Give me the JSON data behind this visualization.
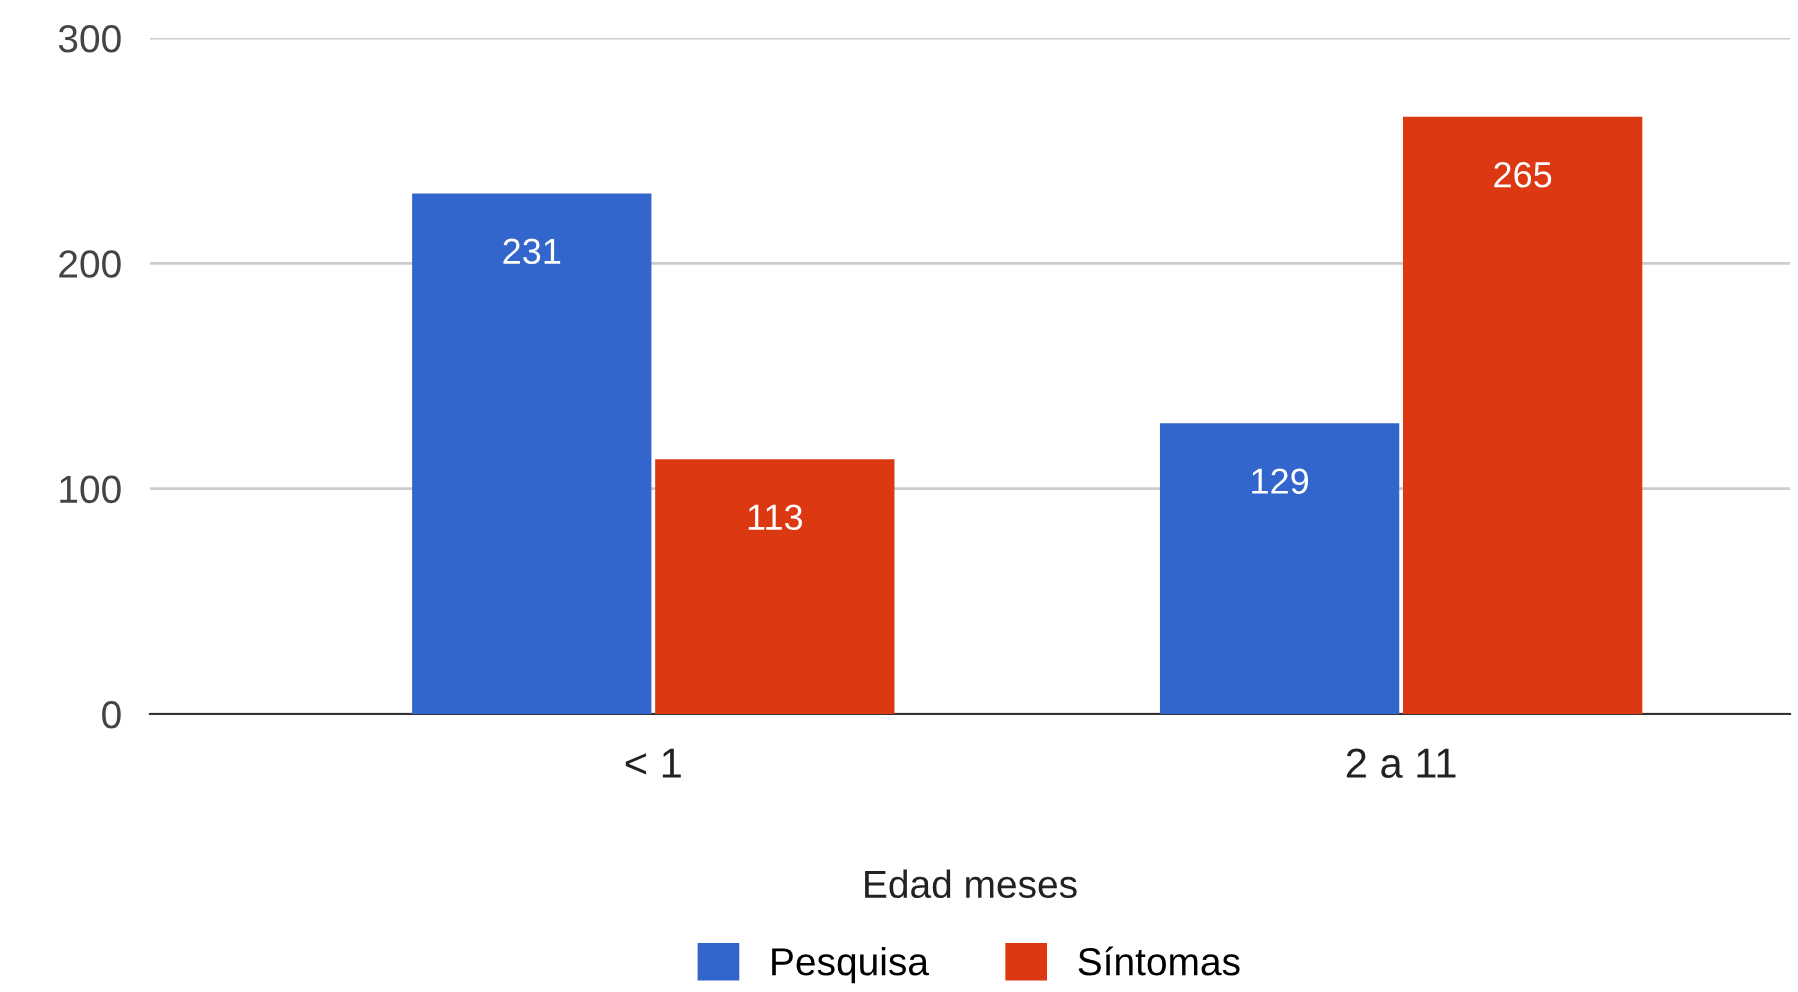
{
  "chart_data": {
    "type": "bar",
    "xlabel": "Edad meses",
    "categories": [
      "< 1",
      "2 a 11"
    ],
    "series": [
      {
        "name": "Pesquisa",
        "color": "#3366cc",
        "values": [
          231,
          129
        ]
      },
      {
        "name": "Síntomas",
        "color": "#dc3912",
        "values": [
          113,
          265
        ]
      }
    ],
    "ylim": [
      0,
      300
    ],
    "yticks": [
      0,
      100,
      200,
      300
    ],
    "grid": "y",
    "legend": "bottom",
    "data_labels": true
  }
}
